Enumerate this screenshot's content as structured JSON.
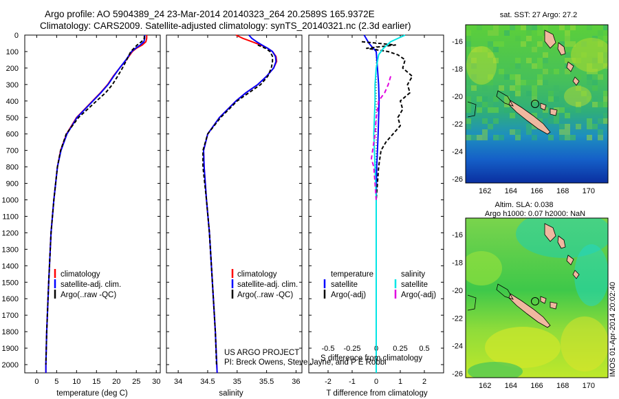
{
  "header": {
    "line1": "Argo profile: AO 5904389_24 23-Mar-2014 20140323_264 20.2589S 165.9372E",
    "line2": "Climatology: CARS2009. Satellite-adjusted climatology: synTS_20140321.nc (2.3d earlier)"
  },
  "project": {
    "line1": "US ARGO PROJECT",
    "line2": "PI: Breck Owens, Steve Jayne, and P E Robbi"
  },
  "footer_vertical": "IMOS 01-Apr-2014 20:02:40",
  "colors": {
    "climatology": "#ff0000",
    "satellite": "#0000ff",
    "argo": "#000000",
    "sat_salinity": "#00e5e5",
    "argo_salinity": "#e000e0",
    "land": "#f0b8a0"
  },
  "chart_data": [
    {
      "type": "line",
      "name": "temperature-profile",
      "xlabel": "temperature (deg C)",
      "ylabel": "",
      "xlim": [
        -3,
        31
      ],
      "ylim": [
        2050,
        0
      ],
      "xticks": [
        0,
        5,
        10,
        15,
        20,
        25,
        30
      ],
      "yticks": [
        0,
        100,
        200,
        300,
        400,
        500,
        600,
        700,
        800,
        900,
        1000,
        1100,
        1200,
        1300,
        1400,
        1500,
        1600,
        1700,
        1800,
        1900,
        2000
      ],
      "legend": [
        "climatology",
        "satellite-adj. clim.",
        "Argo(..raw -QC)"
      ],
      "series": [
        {
          "name": "climatology",
          "color": "#ff0000",
          "dash": "",
          "depth": [
            0,
            20,
            40,
            60,
            80,
            100,
            150,
            200,
            250,
            300,
            350,
            400,
            500,
            600,
            700,
            800,
            1000,
            1200,
            1500,
            1800,
            2000,
            2050
          ],
          "values": [
            27.6,
            27.6,
            27.4,
            26.5,
            25.0,
            24.0,
            22.5,
            20.8,
            19.2,
            17.8,
            16.0,
            14.0,
            10.0,
            7.5,
            6.0,
            5.2,
            4.3,
            3.6,
            3.0,
            2.5,
            2.3,
            2.3
          ]
        },
        {
          "name": "satellite-adj. clim.",
          "color": "#0000ff",
          "dash": "",
          "depth": [
            0,
            20,
            40,
            60,
            80,
            100,
            150,
            200,
            250,
            300,
            350,
            400,
            500,
            600,
            700,
            800,
            1000,
            1200,
            1500,
            1800,
            2000,
            2050
          ],
          "values": [
            27.1,
            27.1,
            26.9,
            26.0,
            24.8,
            23.8,
            22.4,
            20.8,
            19.3,
            17.9,
            16.1,
            14.1,
            10.1,
            7.6,
            6.1,
            5.2,
            4.3,
            3.6,
            3.0,
            2.5,
            2.3,
            2.3
          ]
        },
        {
          "name": "Argo(..raw -QC)",
          "color": "#000000",
          "dash": "5,3",
          "depth": [
            5,
            20,
            40,
            60,
            80,
            100,
            150,
            200,
            250,
            300,
            350,
            400,
            500,
            600,
            700,
            800,
            1000,
            1200,
            1500,
            1800,
            2000
          ],
          "values": [
            27.0,
            27.0,
            26.3,
            25.2,
            24.4,
            23.6,
            22.6,
            21.5,
            20.3,
            19.0,
            17.3,
            15.0,
            10.5,
            7.4,
            6.0,
            5.2,
            4.3,
            3.6,
            3.0,
            2.5,
            2.3
          ]
        }
      ]
    },
    {
      "type": "line",
      "name": "salinity-profile",
      "xlabel": "salinity",
      "xlim": [
        33.8,
        36.1
      ],
      "ylim": [
        2050,
        0
      ],
      "xticks": [
        34,
        34.5,
        35,
        35.5,
        36
      ],
      "legend": [
        "climatology",
        "satellite-adj. clim.",
        "Argo(..raw -QC)"
      ],
      "series": [
        {
          "name": "climatology",
          "color": "#ff0000",
          "dash": "",
          "depth": [
            0,
            20,
            40,
            60,
            80,
            100,
            130,
            160,
            200,
            250,
            300,
            350,
            400,
            500,
            600,
            700,
            800,
            1000,
            1200,
            1500,
            1800,
            2050
          ],
          "values": [
            34.98,
            35.1,
            35.25,
            35.4,
            35.52,
            35.6,
            35.66,
            35.67,
            35.62,
            35.5,
            35.35,
            35.15,
            34.98,
            34.7,
            34.5,
            34.43,
            34.44,
            34.48,
            34.53,
            34.58,
            34.63,
            34.66
          ]
        },
        {
          "name": "satellite-adj. clim.",
          "color": "#0000ff",
          "dash": "",
          "depth": [
            0,
            20,
            40,
            60,
            80,
            100,
            130,
            160,
            200,
            250,
            300,
            350,
            400,
            500,
            600,
            700,
            800,
            1000,
            1200,
            1500,
            1800,
            2050
          ],
          "values": [
            35.2,
            35.25,
            35.33,
            35.42,
            35.52,
            35.6,
            35.65,
            35.66,
            35.62,
            35.5,
            35.35,
            35.15,
            34.98,
            34.7,
            34.5,
            34.43,
            34.44,
            34.48,
            34.53,
            34.58,
            34.63,
            34.66
          ]
        },
        {
          "name": "Argo(..raw -QC)",
          "color": "#000000",
          "dash": "5,3",
          "depth": [
            60,
            80,
            100,
            130,
            160,
            200,
            250,
            300,
            350,
            400,
            500,
            600,
            700,
            800,
            1000,
            1200,
            1500,
            1800,
            2000
          ],
          "values": [
            35.35,
            35.48,
            35.56,
            35.6,
            35.6,
            35.58,
            35.52,
            35.4,
            35.2,
            35.0,
            34.72,
            34.5,
            34.42,
            34.42,
            34.48,
            34.53,
            34.58,
            34.63,
            34.65
          ]
        }
      ]
    },
    {
      "type": "line",
      "name": "difference-profile",
      "xlabel": "T difference from climatology",
      "xlabel_top": "S difference from climatology",
      "xlim": [
        -2.8,
        2.8
      ],
      "ylim": [
        2050,
        0
      ],
      "xticks": [
        -2,
        -1,
        0,
        1,
        2
      ],
      "xticks_s": [
        "-0.5",
        "-0.25",
        "0",
        "0.25",
        "0.5"
      ],
      "legend_titles": [
        "temperature",
        "salinity"
      ],
      "legend": [
        "satellite",
        "Argo(-adj)",
        "satellite",
        "Argo(-adj)"
      ],
      "series": [
        {
          "name": "T satellite",
          "color": "#0000ff",
          "dash": "",
          "depth": [
            0,
            50,
            100,
            200,
            300,
            400,
            500,
            600,
            700,
            800,
            1000,
            1500,
            2050
          ],
          "values": [
            -0.5,
            -0.3,
            0.0,
            0.05,
            0.1,
            0.12,
            0.1,
            0.08,
            0.05,
            0.02,
            0.0,
            0.0,
            0.0
          ]
        },
        {
          "name": "T Argo(-adj)",
          "color": "#000000",
          "dash": "5,3",
          "depth": [
            40,
            60,
            80,
            100,
            120,
            150,
            200,
            250,
            300,
            350,
            400,
            450,
            500,
            550,
            600,
            650,
            700,
            800,
            900,
            1000
          ],
          "values": [
            -0.6,
            0.8,
            -0.4,
            0.5,
            0.9,
            1.2,
            1.1,
            1.5,
            1.3,
            1.4,
            1.0,
            1.1,
            0.9,
            1.0,
            0.7,
            0.4,
            0.2,
            0.1,
            0.05,
            0.0
          ]
        },
        {
          "name": "S satellite",
          "color": "#00e5e5",
          "dash": "",
          "depth": [
            0,
            40,
            80,
            120,
            200,
            300,
            400,
            600,
            800,
            1000,
            1500,
            2050
          ],
          "values": [
            1.2,
            0.6,
            0.3,
            0.1,
            0.0,
            -0.05,
            -0.05,
            -0.1,
            -0.05,
            0.0,
            0.0,
            0.0
          ]
        },
        {
          "name": "S Argo(-adj)",
          "color": "#e000e0",
          "dash": "6,4",
          "depth": [
            250,
            300,
            350,
            400,
            500,
            600,
            700,
            750,
            800,
            900,
            1000
          ],
          "values": [
            0.6,
            0.5,
            0.35,
            0.1,
            0.0,
            -0.05,
            -0.15,
            -0.2,
            -0.1,
            -0.05,
            0.0
          ]
        }
      ]
    },
    {
      "type": "heatmap",
      "name": "sst-map",
      "title": "sat. SST: 27  Argo: 27.2",
      "xticks": [
        162,
        164,
        166,
        168,
        170
      ],
      "yticks": [
        -16,
        -18,
        -20,
        -22,
        -24,
        -26
      ],
      "xlim": [
        160.5,
        171.5
      ],
      "ylim": [
        -26.3,
        -14.8
      ]
    },
    {
      "type": "heatmap",
      "name": "sla-map",
      "title1": "Altim. SLA: 0.038",
      "title2": "Argo h1000: 0.07  h2000: NaN",
      "xticks": [
        162,
        164,
        166,
        168,
        170
      ],
      "yticks": [
        -16,
        -18,
        -20,
        -22,
        -24,
        -26
      ],
      "xlim": [
        160.5,
        171.5
      ],
      "ylim": [
        -26.3,
        -14.8
      ]
    }
  ]
}
